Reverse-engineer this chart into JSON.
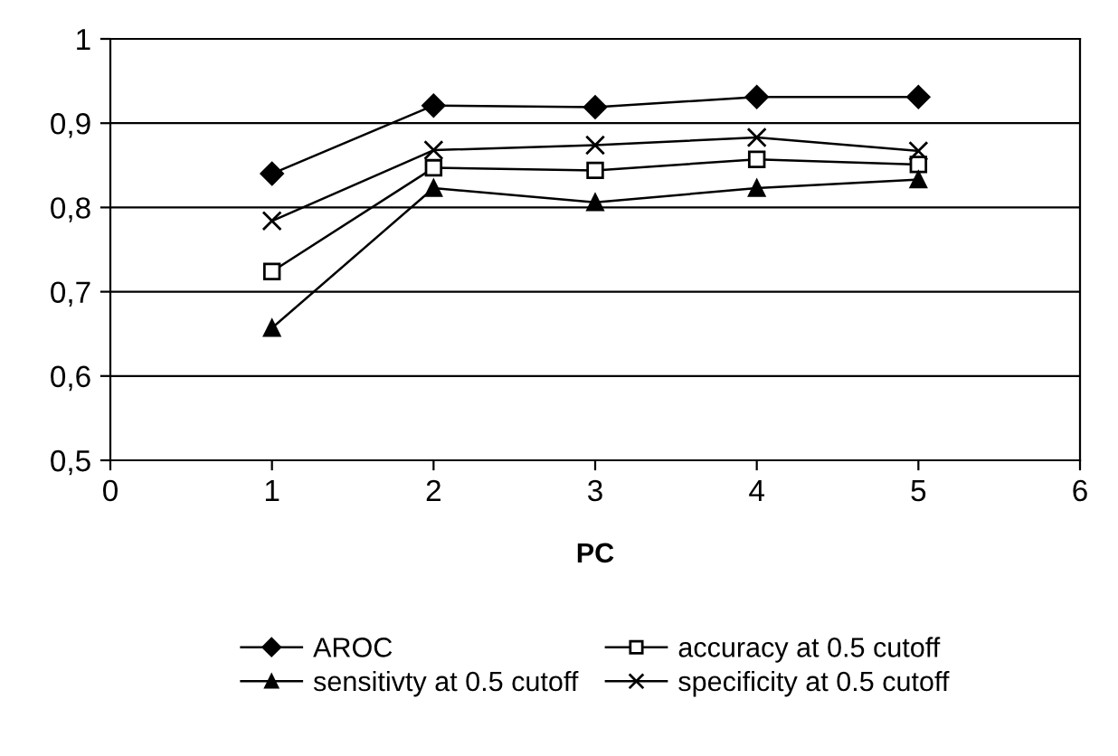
{
  "chart_data": {
    "type": "line",
    "xlabel": "PC",
    "x": [
      1,
      2,
      3,
      4,
      5
    ],
    "series": [
      {
        "name": "AROC",
        "color": "#000000",
        "marker": "diamond",
        "values": [
          0.84,
          0.921,
          0.919,
          0.931,
          0.931
        ]
      },
      {
        "name": "accuracy at 0.5 cutoff",
        "color": "#000000",
        "marker": "square",
        "values": [
          0.724,
          0.847,
          0.844,
          0.857,
          0.851
        ]
      },
      {
        "name": "sensitivty at 0.5 cutoff",
        "color": "#000000",
        "marker": "triangle",
        "values": [
          0.657,
          0.823,
          0.806,
          0.823,
          0.833
        ]
      },
      {
        "name": "specificity at 0.5 cutoff",
        "color": "#000000",
        "marker": "cross",
        "values": [
          0.784,
          0.868,
          0.874,
          0.883,
          0.867
        ]
      }
    ],
    "xlim": [
      0,
      6
    ],
    "xticks": [
      0,
      1,
      2,
      3,
      4,
      5,
      6
    ],
    "ylim": [
      0.5,
      1
    ],
    "yticks": [
      {
        "value": 0.5,
        "label": "0,5"
      },
      {
        "value": 0.6,
        "label": "0,6"
      },
      {
        "value": 0.7,
        "label": "0,7"
      },
      {
        "value": 0.8,
        "label": "0,8"
      },
      {
        "value": 0.9,
        "label": "0,9"
      },
      1
    ],
    "grid": "y",
    "legend": "bottom",
    "line_style": "solid"
  }
}
